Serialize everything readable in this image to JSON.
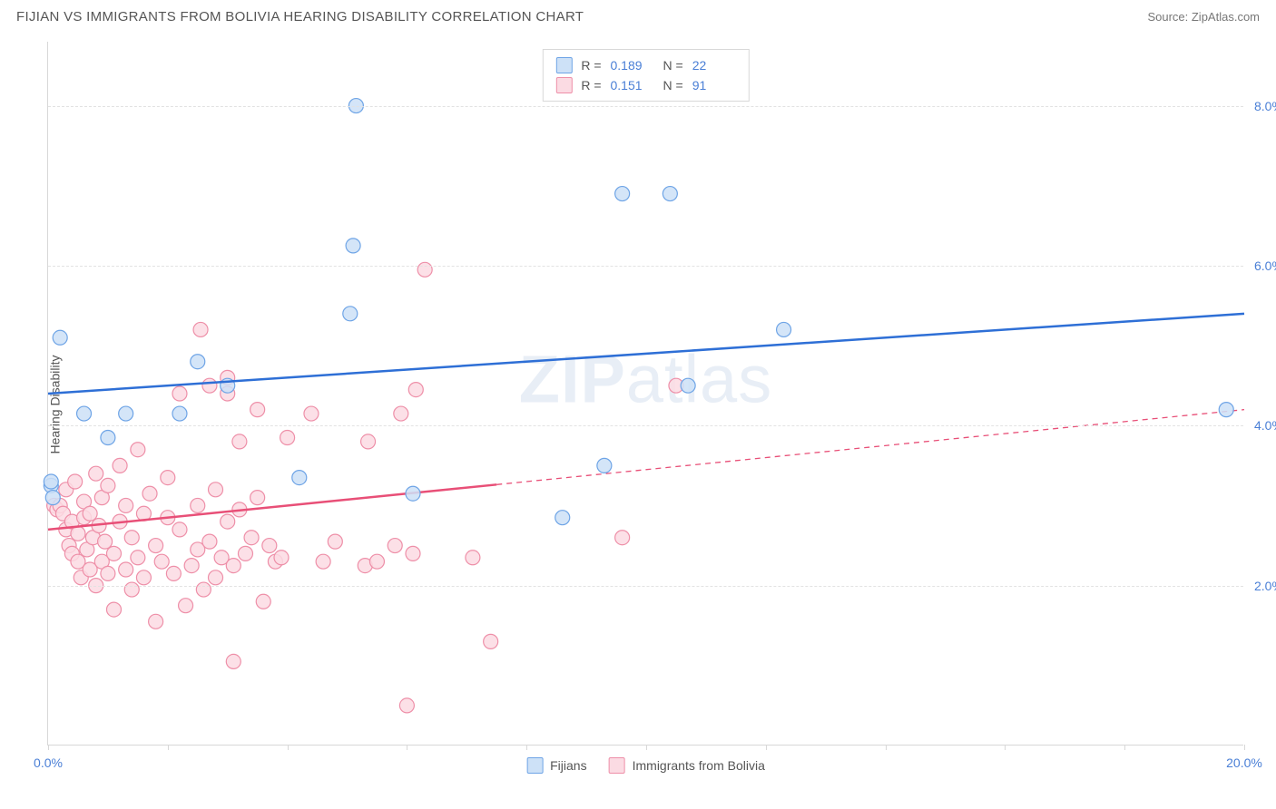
{
  "title": "FIJIAN VS IMMIGRANTS FROM BOLIVIA HEARING DISABILITY CORRELATION CHART",
  "source": "Source: ZipAtlas.com",
  "ylabel": "Hearing Disability",
  "watermark_bold": "ZIP",
  "watermark_light": "atlas",
  "chart": {
    "type": "scatter",
    "xlim": [
      0,
      20
    ],
    "ylim": [
      0,
      8.8
    ],
    "xticks": [
      0,
      2,
      4,
      6,
      8,
      10,
      12,
      14,
      16,
      18,
      20
    ],
    "xtick_labels": {
      "0": "0.0%",
      "20": "20.0%"
    },
    "yticks": [
      2,
      4,
      6,
      8
    ],
    "ytick_labels": [
      "2.0%",
      "4.0%",
      "6.0%",
      "8.0%"
    ],
    "grid_color": "#e2e2e2",
    "background_color": "#ffffff",
    "axis_color": "#d8d8d8"
  },
  "series": [
    {
      "name": "Fijians",
      "color_fill": "#cde1f7",
      "color_stroke": "#6ea4e6",
      "line_color": "#2e6fd6",
      "R": "0.189",
      "N": "22",
      "trend": {
        "x1": 0,
        "y1": 4.4,
        "x2": 20,
        "y2": 5.4,
        "dashed": false
      },
      "points": [
        [
          0.05,
          3.25
        ],
        [
          0.05,
          3.3
        ],
        [
          0.08,
          3.1
        ],
        [
          0.2,
          5.1
        ],
        [
          0.6,
          4.15
        ],
        [
          1.0,
          3.85
        ],
        [
          1.3,
          4.15
        ],
        [
          2.2,
          4.15
        ],
        [
          2.5,
          4.8
        ],
        [
          3.0,
          4.5
        ],
        [
          4.2,
          3.35
        ],
        [
          5.05,
          5.4
        ],
        [
          5.1,
          6.25
        ],
        [
          5.15,
          8.0
        ],
        [
          6.1,
          3.15
        ],
        [
          8.6,
          2.85
        ],
        [
          9.3,
          3.5
        ],
        [
          9.6,
          6.9
        ],
        [
          10.4,
          6.9
        ],
        [
          10.7,
          4.5
        ],
        [
          12.3,
          5.2
        ],
        [
          19.7,
          4.2
        ]
      ]
    },
    {
      "name": "Immigrants from Bolivia",
      "color_fill": "#fbdbe3",
      "color_stroke": "#ee8fa8",
      "line_color": "#e84f77",
      "R": "0.151",
      "N": "91",
      "trend": {
        "x1": 0,
        "y1": 2.7,
        "x2": 20,
        "y2": 4.2,
        "dashed_after_x": 7.5
      },
      "points": [
        [
          0.1,
          3.0
        ],
        [
          0.15,
          2.95
        ],
        [
          0.2,
          3.0
        ],
        [
          0.25,
          2.9
        ],
        [
          0.3,
          2.7
        ],
        [
          0.3,
          3.2
        ],
        [
          0.35,
          2.5
        ],
        [
          0.4,
          2.8
        ],
        [
          0.4,
          2.4
        ],
        [
          0.45,
          3.3
        ],
        [
          0.5,
          2.3
        ],
        [
          0.5,
          2.65
        ],
        [
          0.55,
          2.1
        ],
        [
          0.6,
          2.85
        ],
        [
          0.6,
          3.05
        ],
        [
          0.65,
          2.45
        ],
        [
          0.7,
          2.9
        ],
        [
          0.7,
          2.2
        ],
        [
          0.75,
          2.6
        ],
        [
          0.8,
          3.4
        ],
        [
          0.8,
          2.0
        ],
        [
          0.85,
          2.75
        ],
        [
          0.9,
          2.3
        ],
        [
          0.9,
          3.1
        ],
        [
          0.95,
          2.55
        ],
        [
          1.0,
          2.15
        ],
        [
          1.0,
          3.25
        ],
        [
          1.1,
          2.4
        ],
        [
          1.1,
          1.7
        ],
        [
          1.2,
          2.8
        ],
        [
          1.2,
          3.5
        ],
        [
          1.3,
          2.2
        ],
        [
          1.3,
          3.0
        ],
        [
          1.4,
          2.6
        ],
        [
          1.4,
          1.95
        ],
        [
          1.5,
          2.35
        ],
        [
          1.5,
          3.7
        ],
        [
          1.6,
          2.9
        ],
        [
          1.6,
          2.1
        ],
        [
          1.7,
          3.15
        ],
        [
          1.8,
          2.5
        ],
        [
          1.8,
          1.55
        ],
        [
          1.9,
          2.3
        ],
        [
          2.0,
          2.85
        ],
        [
          2.0,
          3.35
        ],
        [
          2.1,
          2.15
        ],
        [
          2.2,
          2.7
        ],
        [
          2.2,
          4.4
        ],
        [
          2.3,
          1.75
        ],
        [
          2.4,
          2.25
        ],
        [
          2.5,
          3.0
        ],
        [
          2.5,
          2.45
        ],
        [
          2.55,
          5.2
        ],
        [
          2.6,
          1.95
        ],
        [
          2.7,
          2.55
        ],
        [
          2.7,
          4.5
        ],
        [
          2.8,
          3.2
        ],
        [
          2.8,
          2.1
        ],
        [
          2.9,
          2.35
        ],
        [
          3.0,
          4.4
        ],
        [
          3.0,
          2.8
        ],
        [
          3.0,
          4.6
        ],
        [
          3.1,
          2.25
        ],
        [
          3.1,
          1.05
        ],
        [
          3.2,
          2.95
        ],
        [
          3.2,
          3.8
        ],
        [
          3.3,
          2.4
        ],
        [
          3.4,
          2.6
        ],
        [
          3.5,
          4.2
        ],
        [
          3.5,
          3.1
        ],
        [
          3.6,
          1.8
        ],
        [
          3.7,
          2.5
        ],
        [
          3.8,
          2.3
        ],
        [
          3.9,
          2.35
        ],
        [
          4.0,
          3.85
        ],
        [
          4.4,
          4.15
        ],
        [
          4.6,
          2.3
        ],
        [
          4.8,
          2.55
        ],
        [
          5.3,
          2.25
        ],
        [
          5.35,
          3.8
        ],
        [
          5.5,
          2.3
        ],
        [
          5.8,
          2.5
        ],
        [
          5.9,
          4.15
        ],
        [
          6.0,
          0.5
        ],
        [
          6.1,
          2.4
        ],
        [
          6.15,
          4.45
        ],
        [
          6.3,
          5.95
        ],
        [
          7.1,
          2.35
        ],
        [
          7.4,
          1.3
        ],
        [
          9.6,
          2.6
        ],
        [
          10.5,
          4.5
        ]
      ]
    }
  ],
  "bottom_legend": [
    "Fijians",
    "Immigrants from Bolivia"
  ],
  "stats_labels": {
    "R": "R =",
    "N": "N ="
  },
  "marker_radius": 8,
  "marker_stroke_width": 1.2,
  "line_width": 2.5
}
